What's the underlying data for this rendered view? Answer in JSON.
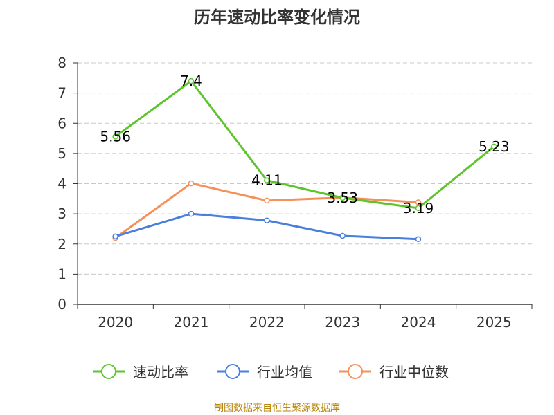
{
  "chart_data": {
    "type": "line",
    "title": "历年速动比率变化情况",
    "categories": [
      "2020",
      "2021",
      "2022",
      "2023",
      "2024",
      "2025"
    ],
    "ylim": [
      0,
      8
    ],
    "yticks": [
      "0",
      "1",
      "2",
      "3",
      "4",
      "5",
      "6",
      "7",
      "8"
    ],
    "grid": true,
    "legend_position": "bottom",
    "series": [
      {
        "name": "速动比率",
        "color": "#5dc52b",
        "values": [
          5.56,
          7.4,
          4.11,
          3.53,
          3.19,
          5.23
        ],
        "labels": [
          "5.56",
          "7.4",
          "4.11",
          "3.53",
          "3.19",
          "5.23"
        ]
      },
      {
        "name": "行业均值",
        "color": "#4a7fdb",
        "values": [
          2.25,
          3.0,
          2.78,
          2.27,
          2.16,
          null
        ]
      },
      {
        "name": "行业中位数",
        "color": "#f5905a",
        "values": [
          2.2,
          4.01,
          3.44,
          3.54,
          3.38,
          null
        ]
      }
    ]
  },
  "source_text": "制图数据来自恒生聚源数据库"
}
